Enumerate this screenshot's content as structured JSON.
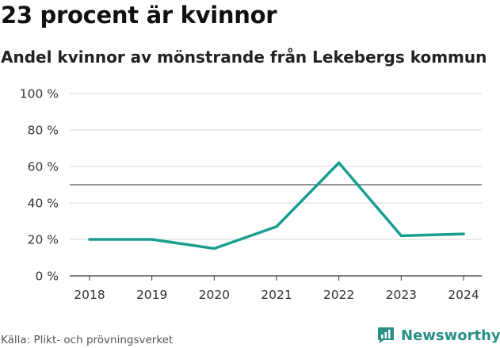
{
  "title": "23 procent är kvinnor",
  "subtitle": "Andel kvinnor av mönstrande från Lekebergs kommun",
  "source": "Källa: Plikt- och prövningsverket",
  "brand": {
    "name": "Newsworthy",
    "icon": "newsworthy-logo-icon"
  },
  "colors": {
    "line": "#1a9e8f",
    "grid": "#d9d9d9",
    "reference": "#555555",
    "brand": "#2a8f86"
  },
  "chart_data": {
    "type": "line",
    "title": "23 procent är kvinnor",
    "subtitle": "Andel kvinnor av mönstrande från Lekebergs kommun",
    "xlabel": "",
    "ylabel": "",
    "x": [
      "2018",
      "2019",
      "2020",
      "2021",
      "2022",
      "2023",
      "2024"
    ],
    "series": [
      {
        "name": "Andel kvinnor",
        "values": [
          20,
          20,
          15,
          27,
          62,
          22,
          23
        ]
      }
    ],
    "ylim": [
      0,
      100
    ],
    "yticks": [
      0,
      20,
      40,
      60,
      80,
      100
    ],
    "ytick_labels": [
      "0 %",
      "20 %",
      "40 %",
      "60 %",
      "80 %",
      "100 %"
    ],
    "reference_line": 50,
    "grid": true
  }
}
